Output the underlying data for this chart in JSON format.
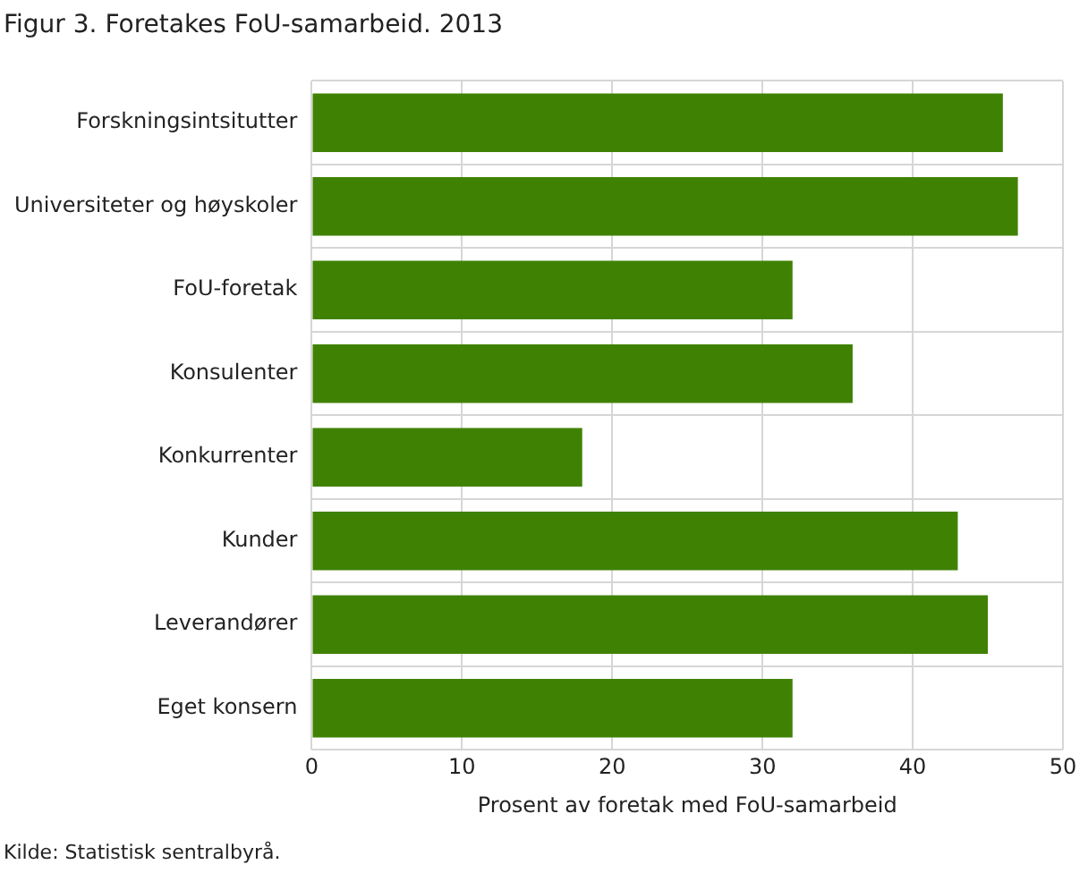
{
  "chart_data": {
    "type": "bar",
    "orientation": "horizontal",
    "title": "Figur 3. Foretakes FoU-samarbeid. 2013",
    "xlabel": "Prosent av foretak med FoU-samarbeid",
    "categories": [
      "Forskningsintsitutter",
      "Universiteter og høyskoler",
      "FoU-foretak",
      "Konsulenter",
      "Konkurrenter",
      "Kunder",
      "Leverandører",
      "Eget konsern"
    ],
    "values": [
      46,
      47,
      32,
      36,
      18,
      43,
      45,
      32
    ],
    "color": "#3f8203",
    "xlim": [
      0,
      50
    ],
    "xticks": [
      0,
      10,
      20,
      30,
      40,
      50
    ],
    "grid": true,
    "legend": false,
    "annotations": [
      "Kilde: Statistisk sentralbyrå."
    ]
  }
}
